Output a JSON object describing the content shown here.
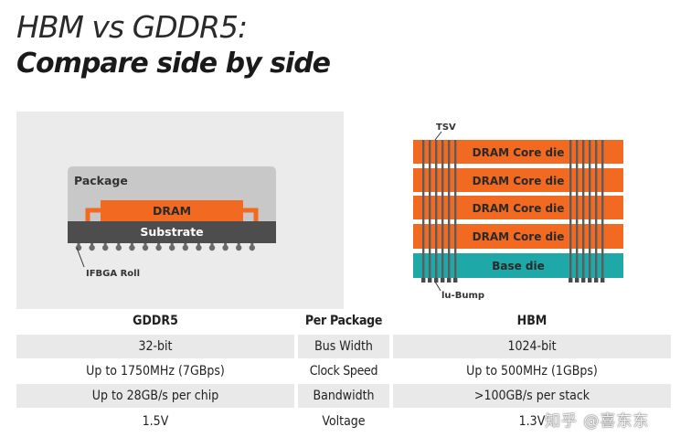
{
  "title": {
    "line1": "HBM vs GDDR5:",
    "line2": "Compare side by side"
  },
  "gddr5_diagram": {
    "package_label": "Package",
    "dram_label": "DRAM",
    "substrate_label": "Substrate",
    "ball_label": "IFBGA Roll"
  },
  "hbm_diagram": {
    "tsv_label": "TSV",
    "core_dies": [
      "DRAM Core die",
      "DRAM Core die",
      "DRAM Core die",
      "DRAM Core die"
    ],
    "base_label": "Base die",
    "bump_label": "lu-Bump"
  },
  "table": {
    "headers": {
      "gddr5": "GDDR5",
      "middle": "Per Package",
      "hbm": "HBM"
    },
    "rows": [
      {
        "gddr5": "32-bit",
        "label": "Bus Width",
        "hbm": "1024-bit"
      },
      {
        "gddr5": "Up to 1750MHz (7GBps)",
        "label": "Clock Speed",
        "hbm": "Up to 500MHz (1GBps)"
      },
      {
        "gddr5": "Up to 28GB/s per chip",
        "label": "Bandwidth",
        "hbm": ">100GB/s per stack"
      },
      {
        "gddr5": "1.5V",
        "label": "Voltage",
        "hbm": "1.3V"
      }
    ]
  },
  "watermark": "知乎 @喜东东",
  "colors": {
    "orange": "#f26a21",
    "teal": "#1fa8a8",
    "substrate": "#4d4d4d",
    "package": "#c8c8c8",
    "panel": "#ebebeb"
  }
}
